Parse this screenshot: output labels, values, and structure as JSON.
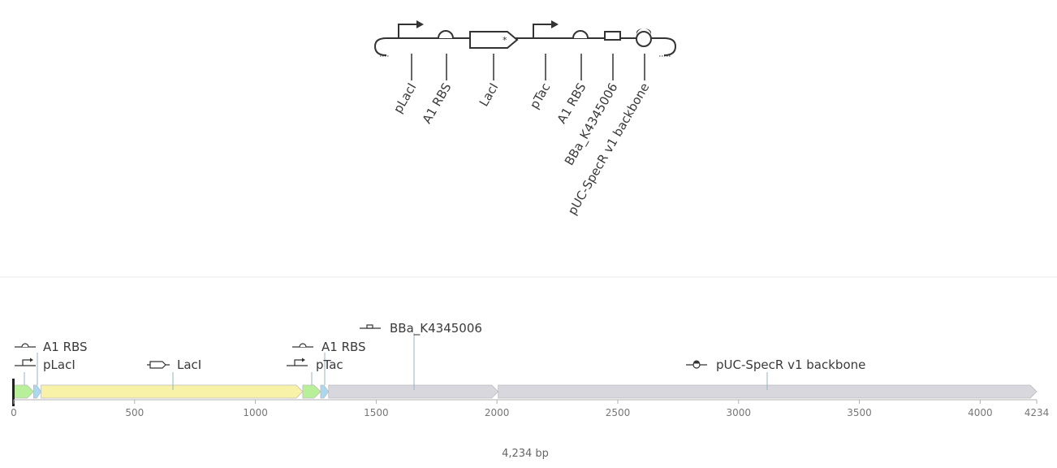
{
  "sbol_parts": [
    {
      "label": "pLacI",
      "glyph": "promoter-icon"
    },
    {
      "label": "A1 RBS",
      "glyph": "rbs-icon"
    },
    {
      "label": "LacI",
      "glyph": "cds-icon"
    },
    {
      "label": "pTac",
      "glyph": "promoter-icon"
    },
    {
      "label": "A1 RBS",
      "glyph": "rbs-icon"
    },
    {
      "label": "BBa_K4345006",
      "glyph": "generic-part-icon"
    },
    {
      "label": "pUC-SpecR v1 backbone",
      "glyph": "origin-icon"
    }
  ],
  "map": {
    "length": 4234,
    "length_label": "4,234 bp",
    "features": [
      {
        "name": "pLacI",
        "start": 1,
        "end": 82,
        "color": "#b8f09a",
        "glyph": "promoter-icon"
      },
      {
        "name": "A1 RBS",
        "start": 83,
        "end": 113,
        "color": "#a9d8ef",
        "glyph": "rbs-icon"
      },
      {
        "name": "LacI",
        "start": 114,
        "end": 1196,
        "color": "#f8f1a8",
        "glyph": "cds-icon"
      },
      {
        "name": "pTac",
        "start": 1197,
        "end": 1270,
        "color": "#b8f09a",
        "glyph": "promoter-icon"
      },
      {
        "name": "A1 RBS",
        "start": 1271,
        "end": 1303,
        "color": "#a9d8ef",
        "glyph": "rbs-icon"
      },
      {
        "name": "BBa_K4345006",
        "start": 1304,
        "end": 2005,
        "color": "#d7d7dd",
        "glyph": "generic-part-icon"
      },
      {
        "name": "pUC-SpecR v1 backbone",
        "start": 2006,
        "end": 4234,
        "color": "#d7d7dd",
        "glyph": "origin-icon"
      }
    ],
    "axis_ticks": [
      "0",
      "500",
      "1000",
      "1500",
      "2000",
      "2500",
      "3000",
      "3500",
      "4000",
      "4234"
    ]
  }
}
